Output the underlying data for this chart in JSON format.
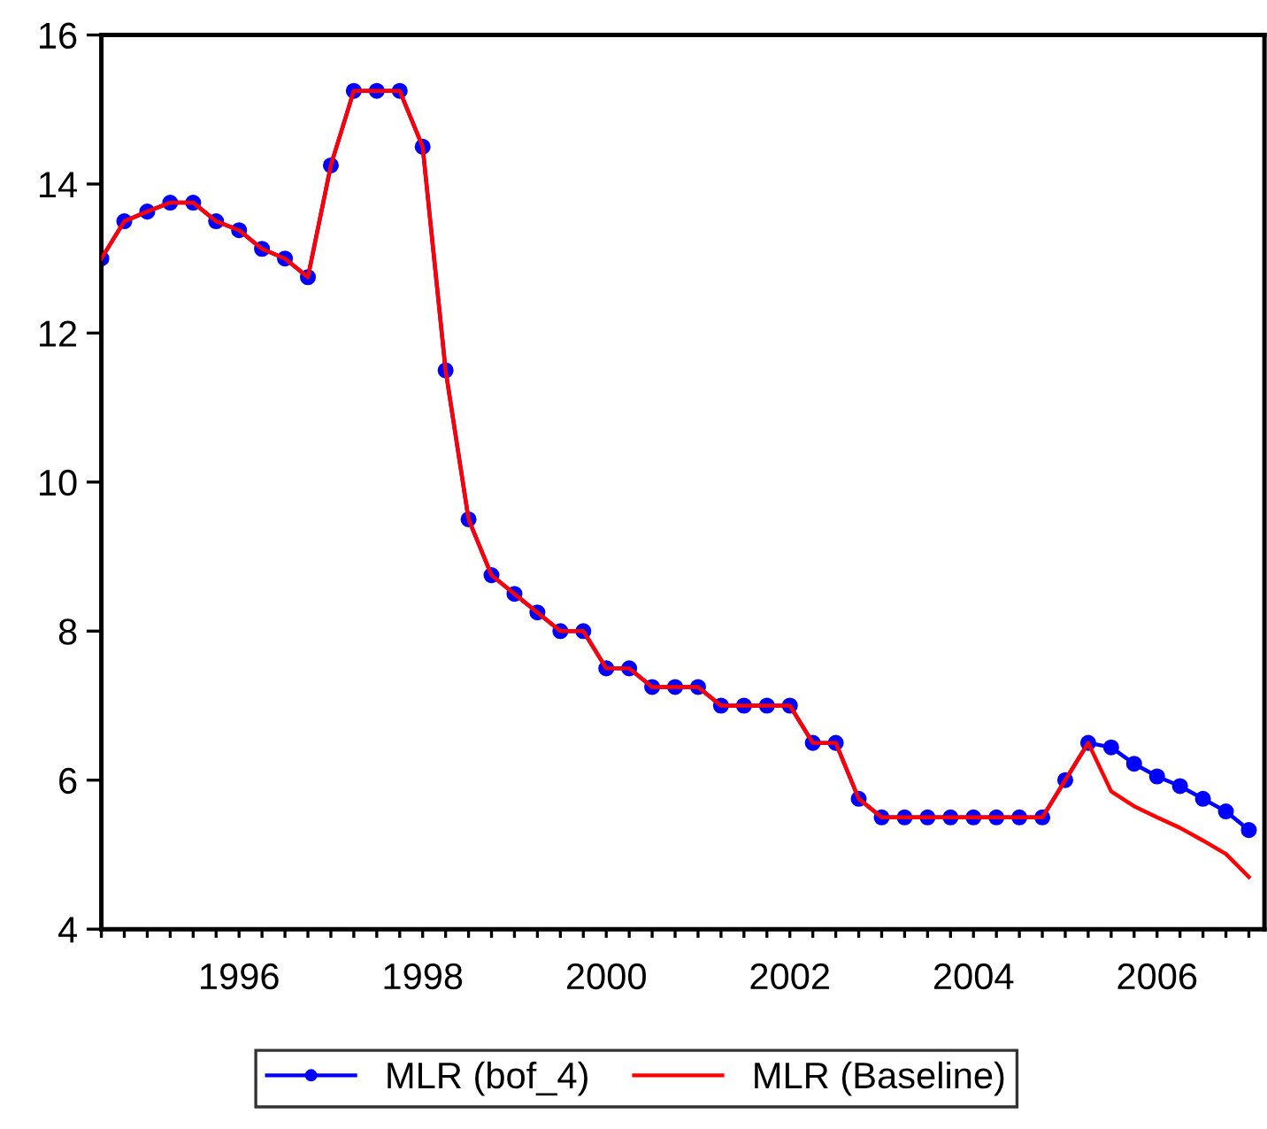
{
  "chart_data": {
    "type": "line",
    "x": [
      1995.0,
      1995.25,
      1995.5,
      1995.75,
      1996.0,
      1996.25,
      1996.5,
      1996.75,
      1997.0,
      1997.25,
      1997.5,
      1997.75,
      1998.0,
      1998.25,
      1998.5,
      1998.75,
      1999.0,
      1999.25,
      1999.5,
      1999.75,
      2000.0,
      2000.25,
      2000.5,
      2000.75,
      2001.0,
      2001.25,
      2001.5,
      2001.75,
      2002.0,
      2002.25,
      2002.5,
      2002.75,
      2003.0,
      2003.25,
      2003.5,
      2003.75,
      2004.0,
      2004.25,
      2004.5,
      2004.75,
      2005.0,
      2005.25,
      2005.5,
      2005.75,
      2006.0,
      2006.25,
      2006.5,
      2006.75,
      2007.0,
      2007.25,
      2007.5
    ],
    "series": [
      {
        "name": "MLR (bof_4)",
        "color": "#0000ff",
        "marker": "circle",
        "values": [
          13.0,
          13.5,
          13.63,
          13.75,
          13.75,
          13.5,
          13.38,
          13.13,
          13.0,
          12.75,
          14.25,
          15.25,
          15.25,
          15.25,
          14.5,
          11.5,
          9.5,
          8.75,
          8.5,
          8.25,
          8.0,
          8.0,
          7.5,
          7.5,
          7.25,
          7.25,
          7.25,
          7.0,
          7.0,
          7.0,
          7.0,
          6.5,
          6.5,
          5.75,
          5.5,
          5.5,
          5.5,
          5.5,
          5.5,
          5.5,
          5.5,
          5.5,
          6.0,
          6.5,
          6.44,
          6.22,
          6.05,
          5.92,
          5.75,
          5.58,
          5.33
        ]
      },
      {
        "name": "MLR (Baseline)",
        "color": "#ff0000",
        "marker": "none",
        "values": [
          13.0,
          13.5,
          13.63,
          13.75,
          13.75,
          13.5,
          13.38,
          13.13,
          13.0,
          12.75,
          14.25,
          15.25,
          15.25,
          15.25,
          14.5,
          11.5,
          9.5,
          8.75,
          8.5,
          8.25,
          8.0,
          8.0,
          7.5,
          7.5,
          7.25,
          7.25,
          7.25,
          7.0,
          7.0,
          7.0,
          7.0,
          6.5,
          6.5,
          5.75,
          5.5,
          5.5,
          5.5,
          5.5,
          5.5,
          5.5,
          5.5,
          5.5,
          6.0,
          6.5,
          5.85,
          5.65,
          5.5,
          5.36,
          5.19,
          5.01,
          4.7
        ]
      }
    ],
    "xlim": [
      1995,
      2007.67
    ],
    "xticks": [
      {
        "value": 1995,
        "label": null
      },
      {
        "value": 1995.25,
        "label": null
      },
      {
        "value": 1995.5,
        "label": null
      },
      {
        "value": 1995.75,
        "label": null
      },
      {
        "value": 1996,
        "label": null
      },
      {
        "value": 1996.25,
        "label": null
      },
      {
        "value": 1996.5,
        "label": "1996"
      },
      {
        "value": 1996.75,
        "label": null
      },
      {
        "value": 1997,
        "label": null
      },
      {
        "value": 1997.25,
        "label": null
      },
      {
        "value": 1997.5,
        "label": null
      },
      {
        "value": 1997.75,
        "label": null
      },
      {
        "value": 1998,
        "label": null
      },
      {
        "value": 1998.25,
        "label": null
      },
      {
        "value": 1998.5,
        "label": "1998"
      },
      {
        "value": 1998.75,
        "label": null
      },
      {
        "value": 1999,
        "label": null
      },
      {
        "value": 1999.25,
        "label": null
      },
      {
        "value": 1999.5,
        "label": null
      },
      {
        "value": 1999.75,
        "label": null
      },
      {
        "value": 2000,
        "label": null
      },
      {
        "value": 2000.25,
        "label": null
      },
      {
        "value": 2000.5,
        "label": "2000"
      },
      {
        "value": 2000.75,
        "label": null
      },
      {
        "value": 2001,
        "label": null
      },
      {
        "value": 2001.25,
        "label": null
      },
      {
        "value": 2001.5,
        "label": null
      },
      {
        "value": 2001.75,
        "label": null
      },
      {
        "value": 2002,
        "label": null
      },
      {
        "value": 2002.25,
        "label": null
      },
      {
        "value": 2002.5,
        "label": "2002"
      },
      {
        "value": 2002.75,
        "label": null
      },
      {
        "value": 2003,
        "label": null
      },
      {
        "value": 2003.25,
        "label": null
      },
      {
        "value": 2003.5,
        "label": null
      },
      {
        "value": 2003.75,
        "label": null
      },
      {
        "value": 2004,
        "label": null
      },
      {
        "value": 2004.25,
        "label": null
      },
      {
        "value": 2004.5,
        "label": "2004"
      },
      {
        "value": 2004.75,
        "label": null
      },
      {
        "value": 2005,
        "label": null
      },
      {
        "value": 2005.25,
        "label": null
      },
      {
        "value": 2005.5,
        "label": null
      },
      {
        "value": 2005.75,
        "label": null
      },
      {
        "value": 2006,
        "label": null
      },
      {
        "value": 2006.25,
        "label": null
      },
      {
        "value": 2006.5,
        "label": "2006"
      },
      {
        "value": 2006.75,
        "label": null
      },
      {
        "value": 2007,
        "label": null
      },
      {
        "value": 2007.25,
        "label": null
      },
      {
        "value": 2007.5,
        "label": null
      }
    ],
    "ylim": [
      4,
      16
    ],
    "yticks": [
      4,
      6,
      8,
      10,
      12,
      14,
      16
    ],
    "grid": false,
    "legend": "bottom",
    "line_style": "solid"
  }
}
